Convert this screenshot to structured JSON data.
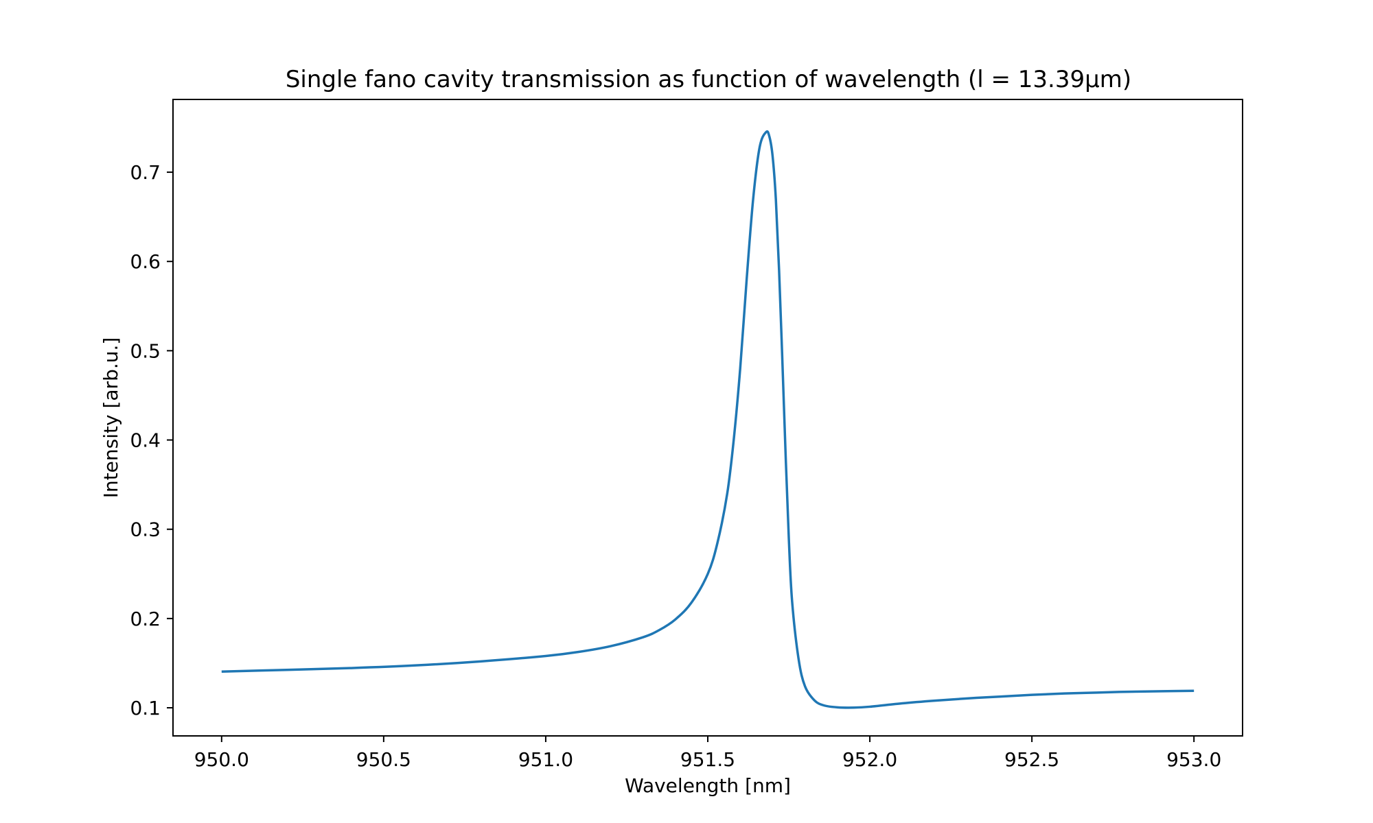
{
  "chart_data": {
    "type": "line",
    "title": "Single fano cavity transmission as function of wavelength (l = 13.39µm)",
    "xlabel": "Wavelength [nm]",
    "ylabel": "Intensity [arb.u.]",
    "xlim": [
      949.85,
      953.15
    ],
    "ylim": [
      0.0685,
      0.7815
    ],
    "xticks": [
      950.0,
      950.5,
      951.0,
      951.5,
      952.0,
      952.5,
      953.0
    ],
    "xtick_labels": [
      "950.0",
      "950.5",
      "951.0",
      "951.5",
      "952.0",
      "952.5",
      "953.0"
    ],
    "yticks": [
      0.1,
      0.2,
      0.3,
      0.4,
      0.5,
      0.6,
      0.7
    ],
    "ytick_labels": [
      "0.1",
      "0.2",
      "0.3",
      "0.4",
      "0.5",
      "0.6",
      "0.7"
    ],
    "grid": false,
    "series": [
      {
        "color": "#1f77b4",
        "x": [
          950.0,
          950.2,
          950.4,
          950.6,
          950.8,
          951.0,
          951.1,
          951.2,
          951.3,
          951.35,
          951.4,
          951.45,
          951.5,
          951.53,
          951.56,
          951.58,
          951.6,
          951.62,
          951.64,
          951.66,
          951.68,
          951.69,
          951.7,
          951.71,
          951.72,
          951.73,
          951.74,
          951.75,
          951.76,
          951.78,
          951.8,
          951.83,
          951.86,
          951.9,
          951.95,
          952.0,
          952.1,
          952.2,
          952.3,
          952.4,
          952.5,
          952.6,
          952.7,
          952.8,
          952.9,
          953.0
        ],
        "y": [
          0.1405,
          0.1425,
          0.1445,
          0.1475,
          0.152,
          0.158,
          0.1625,
          0.169,
          0.179,
          0.187,
          0.199,
          0.218,
          0.25,
          0.285,
          0.34,
          0.4,
          0.48,
          0.58,
          0.67,
          0.728,
          0.745,
          0.74,
          0.718,
          0.67,
          0.59,
          0.49,
          0.385,
          0.29,
          0.22,
          0.155,
          0.124,
          0.108,
          0.1025,
          0.1005,
          0.1002,
          0.1012,
          0.105,
          0.108,
          0.1105,
          0.1125,
          0.1145,
          0.116,
          0.117,
          0.118,
          0.1185,
          0.119
        ]
      }
    ]
  }
}
